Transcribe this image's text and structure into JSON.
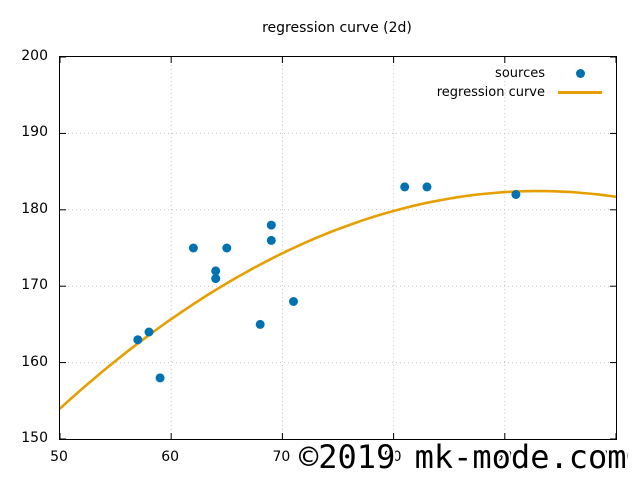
{
  "title": "regression curve (2d)",
  "watermark": "©2019 mk-mode.com",
  "colors": {
    "points": "#0072B2",
    "curve": "#E69F00",
    "grid": "#c4c4c4",
    "axis": "#000000",
    "background": "#ffffff"
  },
  "legend": {
    "position": "top-right",
    "items": [
      {
        "label": "sources",
        "marker": "point"
      },
      {
        "label": "regression curve",
        "marker": "line"
      }
    ]
  },
  "chart_data": {
    "type": "scatter",
    "title": "regression curve (2d)",
    "xlabel": "",
    "ylabel": "",
    "xlim": [
      50,
      100
    ],
    "ylim": [
      150,
      200
    ],
    "xticks": [
      50,
      60,
      70,
      80,
      90,
      100
    ],
    "yticks": [
      150,
      160,
      170,
      180,
      190,
      200
    ],
    "grid": "dotted",
    "legend_position": "top-right inside",
    "series": [
      {
        "name": "sources",
        "type": "scatter",
        "color": "#0072B2",
        "points": [
          [
            57,
            163
          ],
          [
            58,
            164
          ],
          [
            59,
            158
          ],
          [
            62,
            175
          ],
          [
            64,
            172
          ],
          [
            64,
            171
          ],
          [
            65,
            175
          ],
          [
            68,
            165
          ],
          [
            69,
            178
          ],
          [
            69,
            176
          ],
          [
            71,
            168
          ],
          [
            81,
            183
          ],
          [
            83,
            183
          ],
          [
            91,
            182
          ]
        ]
      },
      {
        "name": "regression curve",
        "type": "quadratic",
        "color": "#E69F00",
        "equation": "y = 182.45 - 0.01539*(x - 93)^2",
        "coefficients": {
          "a": -0.01539,
          "peak_x": 93,
          "peak_y": 182.45
        },
        "x_start": 50,
        "x_end": 100,
        "endpoint_values": {
          "y_at_50": 154.0,
          "y_at_100": 181.7
        }
      }
    ]
  }
}
